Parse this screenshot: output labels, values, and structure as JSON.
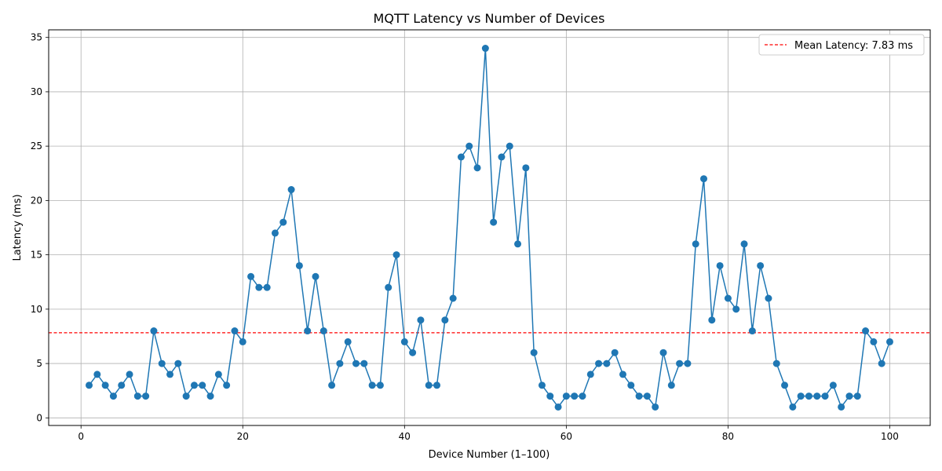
{
  "chart_data": {
    "type": "line",
    "title": "MQTT Latency vs Number of Devices",
    "xlabel": "Device Number (1–100)",
    "ylabel": "Latency (ms)",
    "xlim": [
      -4,
      105
    ],
    "ylim": [
      -0.7,
      35.7
    ],
    "xticks": [
      0,
      20,
      40,
      60,
      80,
      100
    ],
    "yticks": [
      0,
      5,
      10,
      15,
      20,
      25,
      30,
      35
    ],
    "grid": true,
    "legend_position": "top-right",
    "series": [
      {
        "color": "#1f77b4",
        "marker": "circle",
        "x": [
          1,
          2,
          3,
          4,
          5,
          6,
          7,
          8,
          9,
          10,
          11,
          12,
          13,
          14,
          15,
          16,
          17,
          18,
          19,
          20,
          21,
          22,
          23,
          24,
          25,
          26,
          27,
          28,
          29,
          30,
          31,
          32,
          33,
          34,
          35,
          36,
          37,
          38,
          39,
          40,
          41,
          42,
          43,
          44,
          45,
          46,
          47,
          48,
          49,
          50,
          51,
          52,
          53,
          54,
          55,
          56,
          57,
          58,
          59,
          60,
          61,
          62,
          63,
          64,
          65,
          66,
          67,
          68,
          69,
          70,
          71,
          72,
          73,
          74,
          75,
          76,
          77,
          78,
          79,
          80,
          81,
          82,
          83,
          84,
          85,
          86,
          87,
          88,
          89,
          90,
          91,
          92,
          93,
          94,
          95,
          96,
          97,
          98,
          99,
          100
        ],
        "values": [
          3,
          4,
          3,
          2,
          3,
          4,
          2,
          2,
          8,
          5,
          4,
          5,
          2,
          3,
          3,
          2,
          4,
          3,
          8,
          7,
          13,
          12,
          12,
          17,
          18,
          21,
          14,
          8,
          13,
          8,
          3,
          5,
          7,
          5,
          5,
          3,
          3,
          12,
          15,
          7,
          6,
          9,
          3,
          3,
          9,
          11,
          24,
          25,
          23,
          34,
          18,
          24,
          25,
          16,
          23,
          6,
          3,
          2,
          1,
          2,
          2,
          2,
          4,
          5,
          5,
          6,
          4,
          3,
          2,
          2,
          1,
          6,
          3,
          5,
          5,
          16,
          22,
          9,
          14,
          11,
          10,
          16,
          8,
          14,
          11,
          5,
          3,
          1,
          2,
          2,
          2,
          2,
          3,
          1,
          2,
          2,
          8,
          7,
          5,
          7
        ]
      }
    ],
    "reference_lines": [
      {
        "label": "Mean Latency: 7.83 ms",
        "value": 7.83,
        "color": "#ff0000",
        "style": "dashed"
      }
    ]
  }
}
